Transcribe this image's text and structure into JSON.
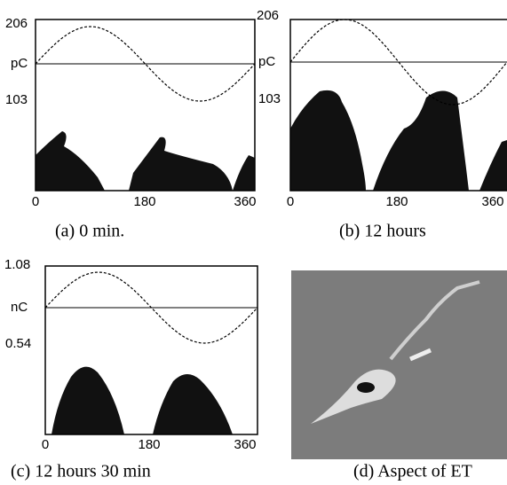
{
  "panels": [
    {
      "y_top": "206",
      "unit": "pC",
      "y_mid": "103",
      "x_ticks": [
        "0",
        "180",
        "360"
      ],
      "caption": "(a)  0 min."
    },
    {
      "y_top": "206",
      "unit": "pC",
      "y_mid": "103",
      "x_ticks": [
        "0",
        "180",
        "360"
      ],
      "caption": "(b) 12 hours"
    },
    {
      "y_top": "1.08",
      "unit": "nC",
      "y_mid": "0.54",
      "x_ticks": [
        "0",
        "180",
        "360"
      ],
      "caption": "(c) 12 hours 30 min"
    },
    {
      "caption": "(d) Aspect of ET"
    }
  ]
}
